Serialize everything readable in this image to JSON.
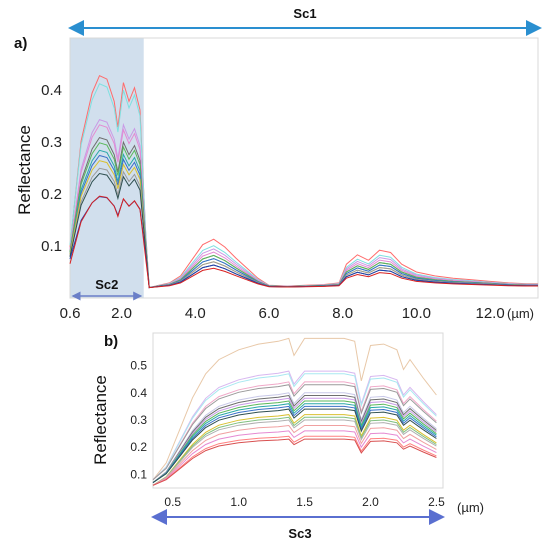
{
  "chart_data": [
    {
      "panel_label": "a)",
      "type": "line",
      "ylabel": "Reflectance",
      "xunit": "(µm)",
      "xlim": [
        0.6,
        13.3
      ],
      "ylim": [
        0.0,
        0.5
      ],
      "x_ticks": [
        0.6,
        2.0,
        4.0,
        6.0,
        8.0,
        10.0,
        12.0
      ],
      "x_tick_labels": [
        "0.6",
        "2.0",
        "4.0",
        "6.0",
        "8.0",
        "10.0",
        "12.0"
      ],
      "y_ticks": [
        0.1,
        0.2,
        0.3,
        0.4
      ],
      "y_tick_labels": [
        "0.1",
        "0.2",
        "0.3",
        "0.4"
      ],
      "highlight": {
        "x": [
          0.6,
          2.6
        ],
        "label": "Sc2",
        "color": "#c9d9ea"
      },
      "range_arrow": {
        "x": [
          0.6,
          13.3
        ],
        "label": "Sc1"
      },
      "x": [
        0.6,
        0.9,
        1.2,
        1.4,
        1.6,
        1.8,
        1.9,
        2.05,
        2.2,
        2.35,
        2.5,
        2.65,
        2.75,
        3.0,
        3.3,
        3.6,
        3.9,
        4.2,
        4.5,
        4.8,
        5.1,
        5.4,
        5.7,
        6.0,
        6.5,
        7.0,
        7.5,
        7.9,
        8.1,
        8.4,
        8.7,
        9.0,
        9.3,
        9.6,
        10.0,
        10.5,
        11.0,
        11.5,
        12.0,
        12.5,
        13.0,
        13.3
      ],
      "shape_vnir": [
        0.0,
        0.62,
        0.9,
        1.0,
        0.98,
        0.85,
        0.7,
        0.96,
        0.85,
        0.93,
        0.8,
        0.1,
        0.05,
        0.08,
        0.12,
        0.25,
        0.45,
        0.6,
        0.62,
        0.55,
        0.42,
        0.3,
        0.15,
        0.05,
        0.03,
        0.04,
        0.05,
        0.08,
        0.25,
        0.35,
        0.3,
        0.4,
        0.38,
        0.28,
        0.2,
        0.15,
        0.12,
        0.1,
        0.08,
        0.06,
        0.05,
        0.05
      ],
      "shape_tir": [
        0.0,
        0.0,
        0.0,
        0.0,
        0.0,
        0.0,
        0.0,
        0.0,
        0.0,
        0.0,
        0.0,
        0.0,
        0.0,
        0.03,
        0.06,
        0.15,
        0.35,
        0.55,
        0.62,
        0.52,
        0.38,
        0.25,
        0.12,
        0.03,
        0.02,
        0.03,
        0.04,
        0.06,
        0.3,
        0.42,
        0.35,
        0.48,
        0.45,
        0.3,
        0.2,
        0.15,
        0.12,
        0.1,
        0.08,
        0.06,
        0.05,
        0.05
      ],
      "series_params": [
        {
          "a": 0.15,
          "vnir": 0.33,
          "tir": 0.15,
          "color": "#ff6b6b"
        },
        {
          "a": 0.16,
          "vnir": 0.31,
          "tir": 0.13,
          "color": "#7fe0e0"
        },
        {
          "a": 0.14,
          "vnir": 0.25,
          "tir": 0.12,
          "color": "#c99ae6"
        },
        {
          "a": 0.14,
          "vnir": 0.24,
          "tir": 0.11,
          "color": "#e58ad2"
        },
        {
          "a": 0.13,
          "vnir": 0.22,
          "tir": 0.1,
          "color": "#6e6e6e"
        },
        {
          "a": 0.13,
          "vnir": 0.21,
          "tir": 0.1,
          "color": "#5bb85b"
        },
        {
          "a": 0.12,
          "vnir": 0.2,
          "tir": 0.09,
          "color": "#2aa8a8"
        },
        {
          "a": 0.12,
          "vnir": 0.19,
          "tir": 0.09,
          "color": "#3a70c8"
        },
        {
          "a": 0.12,
          "vnir": 0.18,
          "tir": 0.08,
          "color": "#d9c030"
        },
        {
          "a": 0.11,
          "vnir": 0.17,
          "tir": 0.08,
          "color": "#9a9a9a"
        },
        {
          "a": 0.11,
          "vnir": 0.16,
          "tir": 0.07,
          "color": "#2f4f4f"
        },
        {
          "a": 0.1,
          "vnir": 0.12,
          "tir": 0.07,
          "color": "#2040b0"
        },
        {
          "a": 0.08,
          "vnir": 0.13,
          "tir": 0.06,
          "color": "#d82020"
        }
      ]
    },
    {
      "panel_label": "b)",
      "type": "line",
      "ylabel": "Reflectance",
      "xunit": "(µm)",
      "xlim": [
        0.35,
        2.55
      ],
      "ylim": [
        0.05,
        0.62
      ],
      "x_ticks": [
        0.5,
        1.0,
        1.5,
        2.0,
        2.5
      ],
      "x_tick_labels": [
        "0.5",
        "1.0",
        "1.5",
        "2.0",
        "2.5"
      ],
      "y_ticks": [
        0.1,
        0.2,
        0.3,
        0.4,
        0.5
      ],
      "y_tick_labels": [
        "0.1",
        "0.2",
        "0.3",
        "0.4",
        "0.5"
      ],
      "range_arrow": {
        "x": [
          0.35,
          2.55
        ],
        "label": "Sc3"
      },
      "x": [
        0.35,
        0.45,
        0.55,
        0.65,
        0.75,
        0.85,
        1.0,
        1.15,
        1.3,
        1.38,
        1.42,
        1.5,
        1.65,
        1.8,
        1.88,
        1.93,
        2.0,
        2.1,
        2.2,
        2.25,
        2.3,
        2.4,
        2.5
      ],
      "shape": [
        0.0,
        0.12,
        0.35,
        0.58,
        0.75,
        0.85,
        0.92,
        0.96,
        0.98,
        1.0,
        0.88,
        1.0,
        1.0,
        1.0,
        0.98,
        0.7,
        0.95,
        0.96,
        0.92,
        0.78,
        0.85,
        0.72,
        0.6
      ],
      "series_params": [
        {
          "a": 0.08,
          "b": 0.52,
          "color": "#e8c8a8"
        },
        {
          "a": 0.08,
          "b": 0.4,
          "color": "#d8b8f0"
        },
        {
          "a": 0.08,
          "b": 0.39,
          "color": "#a8e8f0"
        },
        {
          "a": 0.08,
          "b": 0.36,
          "color": "#f0a8c8"
        },
        {
          "a": 0.08,
          "b": 0.35,
          "color": "#9a9a9a"
        },
        {
          "a": 0.07,
          "b": 0.33,
          "color": "#c8c8e8"
        },
        {
          "a": 0.07,
          "b": 0.32,
          "color": "#6e6e6e"
        },
        {
          "a": 0.07,
          "b": 0.31,
          "color": "#c99ae6"
        },
        {
          "a": 0.07,
          "b": 0.3,
          "color": "#5bb85b"
        },
        {
          "a": 0.07,
          "b": 0.29,
          "color": "#2aa8a8"
        },
        {
          "a": 0.07,
          "b": 0.28,
          "color": "#3a70c8"
        },
        {
          "a": 0.07,
          "b": 0.27,
          "color": "#2f4f4f"
        },
        {
          "a": 0.06,
          "b": 0.26,
          "color": "#d9c030"
        },
        {
          "a": 0.06,
          "b": 0.25,
          "color": "#80c080"
        },
        {
          "a": 0.06,
          "b": 0.24,
          "color": "#b0b0b0"
        },
        {
          "a": 0.06,
          "b": 0.22,
          "color": "#f0a0a0"
        },
        {
          "a": 0.06,
          "b": 0.2,
          "color": "#e58ad2"
        },
        {
          "a": 0.06,
          "b": 0.18,
          "color": "#ff8080"
        },
        {
          "a": 0.06,
          "b": 0.17,
          "color": "#d85050"
        }
      ]
    }
  ],
  "arrow_color": "#2a8fd0",
  "arrow_color_b": "#5a6fd0"
}
